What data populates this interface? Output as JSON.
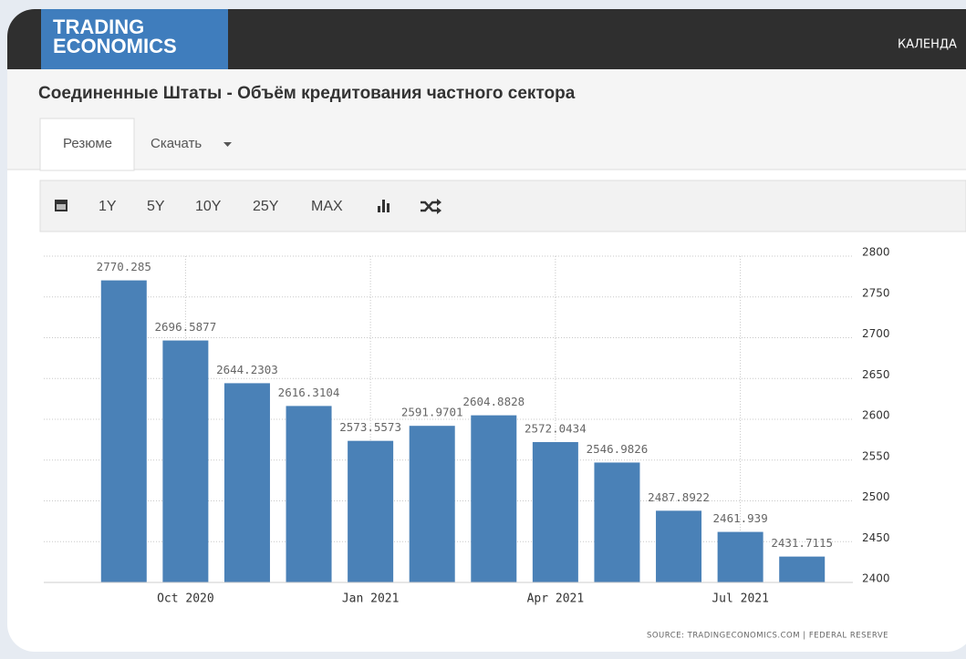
{
  "header": {
    "logo_line1": "TRADING",
    "logo_line2": "ECONOMICS",
    "nav_item": "КАЛЕНДА"
  },
  "page_title": "Соединенные Штаты - Объём кредитования частного сектора",
  "tabs": [
    "Резюме",
    "Скачать"
  ],
  "toolbar": [
    "1Y",
    "5Y",
    "10Y",
    "25Y",
    "MAX"
  ],
  "chart_data": {
    "type": "bar",
    "categories": [
      null,
      "Oct 2020",
      null,
      null,
      "Jan 2021",
      null,
      null,
      "Apr 2021",
      null,
      null,
      "Jul 2021",
      null
    ],
    "values": [
      2770.285,
      2696.5877,
      2644.2303,
      2616.3104,
      2573.5573,
      2591.9701,
      2604.8828,
      2572.0434,
      2546.9826,
      2487.8922,
      2461.939,
      2431.7115
    ],
    "color": "#4a81b7",
    "ylim": [
      2400,
      2800
    ],
    "yticks": [
      2400,
      2450,
      2500,
      2550,
      2600,
      2650,
      2700,
      2750,
      2800
    ],
    "grid": true,
    "source": "SOURCE: TRADINGECONOMICS.COM | FEDERAL RESERVE"
  }
}
